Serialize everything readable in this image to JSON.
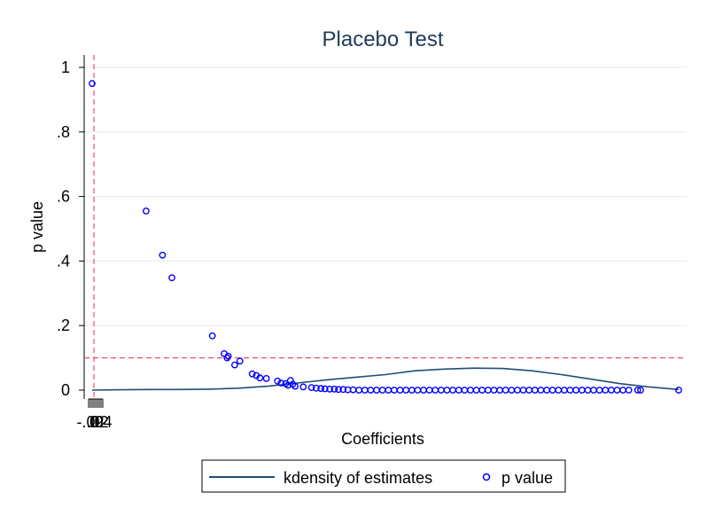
{
  "chart_data": {
    "type": "scatter",
    "title": "Placebo Test",
    "xlabel": "Coefficients",
    "ylabel": "p value",
    "x_tick_labels": [
      "-.02",
      "0",
      ".02",
      ".04"
    ],
    "y_tick_labels": [
      "0",
      ".2",
      ".4",
      ".6",
      ".8",
      "1"
    ],
    "ylim": [
      0,
      1
    ],
    "y_ticks": [
      0,
      0.2,
      0.4,
      0.6,
      0.8,
      1
    ],
    "reference_lines": {
      "x_dashed_value": 0,
      "y_dashed_value": 0.1
    },
    "colors": {
      "kdensity": "#1f4e79",
      "pvalue": "#0000ff",
      "reference": "#e8506a",
      "grid": "#e8e8e8",
      "title": "#1f3b5a"
    },
    "legend": {
      "placement": "bottom",
      "entries": [
        "kdensity of estimates",
        "p value"
      ]
    },
    "series": [
      {
        "name": "kdensity of estimates",
        "kind": "line",
        "x": [
          0,
          0.05,
          0.1,
          0.15,
          0.2,
          0.25,
          0.3,
          0.35,
          0.4,
          0.45,
          0.5,
          0.55,
          0.6,
          0.65,
          0.7,
          0.75,
          0.8,
          0.85,
          0.9,
          0.95,
          1
        ],
        "y": [
          0,
          0.001,
          0.002,
          0.002,
          0.003,
          0.006,
          0.012,
          0.022,
          0.032,
          0.04,
          0.048,
          0.06,
          0.065,
          0.068,
          0.067,
          0.06,
          0.048,
          0.034,
          0.02,
          0.01,
          0.002
        ]
      },
      {
        "name": "p value",
        "kind": "scatter",
        "x": [
          0.0,
          0.092,
          0.12,
          0.136,
          0.205,
          0.225,
          0.23,
          0.232,
          0.243,
          0.252,
          0.273,
          0.28,
          0.286,
          0.297,
          0.316,
          0.322,
          0.33,
          0.334,
          0.338,
          0.342,
          0.346,
          0.36,
          0.374,
          0.382,
          0.39,
          0.397,
          0.405,
          0.413,
          0.42,
          0.428,
          0.436,
          0.445,
          0.455,
          0.465,
          0.475,
          0.485,
          0.495,
          0.505,
          0.515,
          0.525,
          0.535,
          0.545,
          0.555,
          0.565,
          0.575,
          0.585,
          0.595,
          0.605,
          0.615,
          0.625,
          0.635,
          0.645,
          0.655,
          0.665,
          0.675,
          0.685,
          0.695,
          0.705,
          0.715,
          0.725,
          0.735,
          0.745,
          0.755,
          0.765,
          0.775,
          0.785,
          0.795,
          0.805,
          0.815,
          0.825,
          0.835,
          0.845,
          0.855,
          0.865,
          0.875,
          0.885,
          0.895,
          0.905,
          0.915,
          0.93,
          0.935,
          1.0
        ],
        "y": [
          0.95,
          0.555,
          0.418,
          0.348,
          0.168,
          0.113,
          0.1,
          0.105,
          0.078,
          0.09,
          0.05,
          0.045,
          0.038,
          0.036,
          0.028,
          0.022,
          0.02,
          0.015,
          0.03,
          0.018,
          0.012,
          0.01,
          0.008,
          0.006,
          0.005,
          0.004,
          0.003,
          0.003,
          0.002,
          0.002,
          0.001,
          0.001,
          0,
          0,
          0,
          0,
          0,
          0,
          0,
          0,
          0,
          0,
          0,
          0,
          0,
          0,
          0,
          0,
          0,
          0,
          0,
          0,
          0,
          0,
          0,
          0,
          0,
          0,
          0,
          0,
          0,
          0,
          0,
          0,
          0,
          0,
          0,
          0,
          0,
          0,
          0,
          0,
          0,
          0,
          0,
          0,
          0,
          0,
          0,
          0,
          0,
          0
        ]
      }
    ]
  }
}
